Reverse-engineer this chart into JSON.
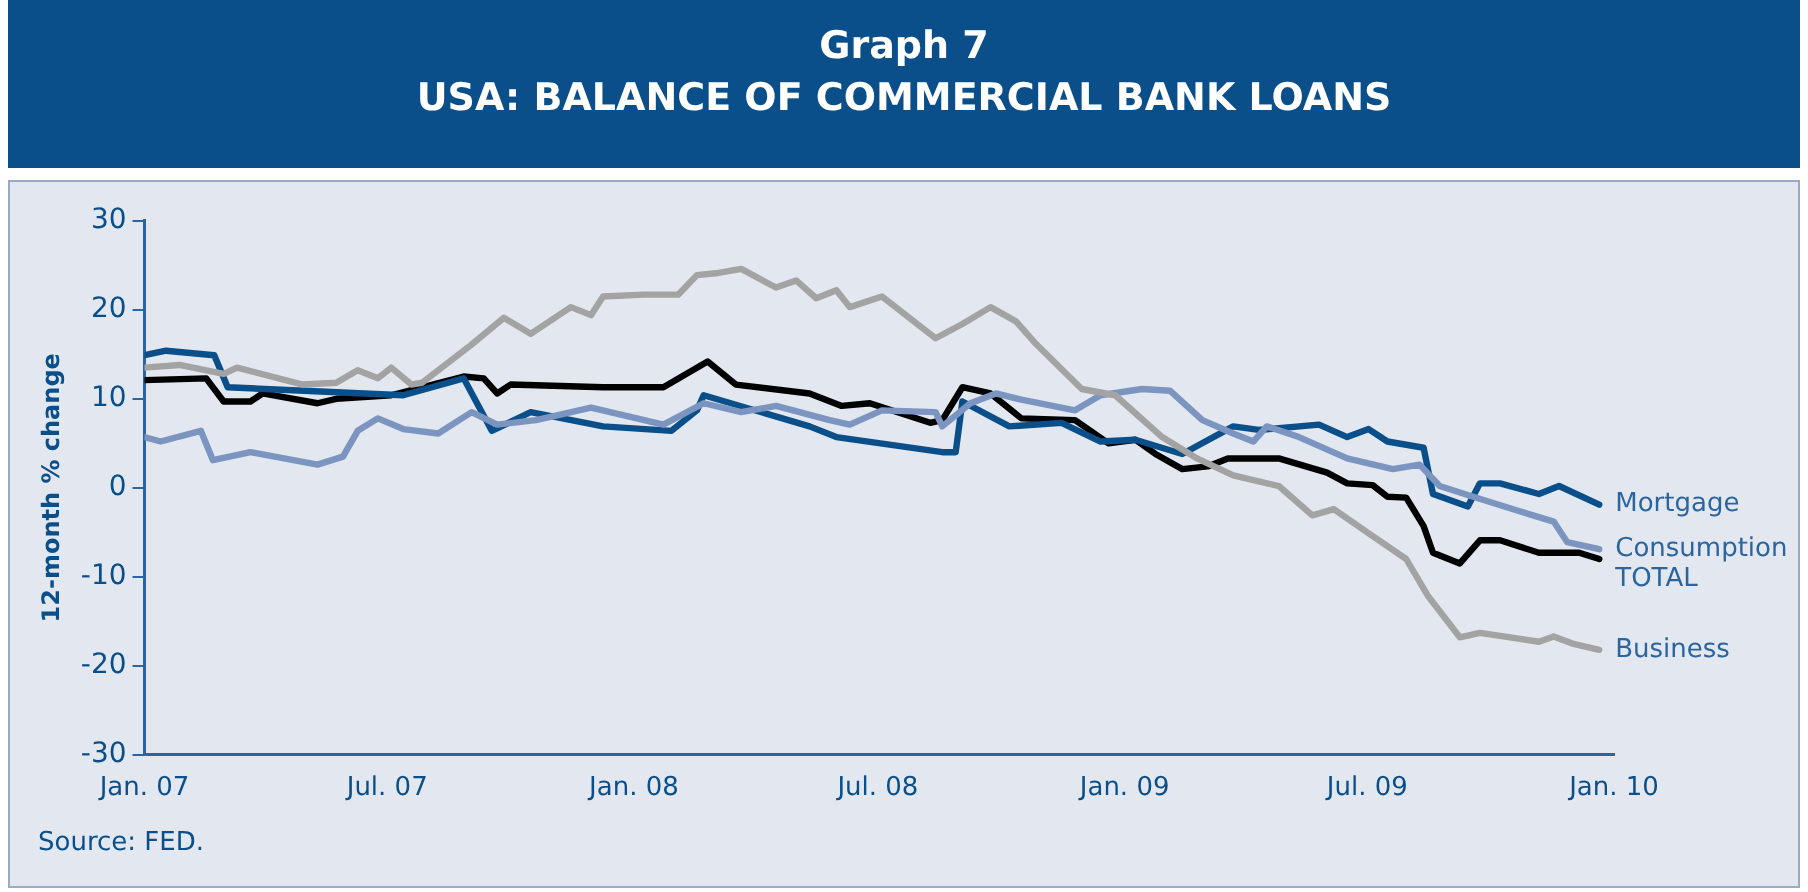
{
  "chart_data": {
    "type": "line",
    "title": "Graph 7",
    "subtitle": "USA: BALANCE OF COMMERCIAL BANK LOANS",
    "ylabel": "12-month % change",
    "annotations": [
      "Source: FED."
    ],
    "xlim": [
      "2007-01-01",
      "2010-01-01"
    ],
    "xticks": [
      {
        "value": "2007-01-01",
        "label": "Jan. 07"
      },
      {
        "value": "2007-07-01",
        "label": "Jul. 07"
      },
      {
        "value": "2008-01-01",
        "label": "Jan. 08"
      },
      {
        "value": "2008-07-01",
        "label": "Jul. 08"
      },
      {
        "value": "2009-01-01",
        "label": "Jan. 09"
      },
      {
        "value": "2009-07-01",
        "label": "Jul. 09"
      },
      {
        "value": "2010-01-01",
        "label": "Jan. 10"
      }
    ],
    "ylim": [
      -30,
      30
    ],
    "yticks": [
      -30,
      -20,
      -10,
      0,
      10,
      20,
      30
    ],
    "grid": false,
    "legend": false,
    "marker": "none",
    "line_style": "solid",
    "series": [
      {
        "name": "Business",
        "color": "#a3a3a3",
        "x": [
          "2007-01-01",
          "2007-01-27",
          "2007-03-01",
          "2007-03-11",
          "2007-04-29",
          "2007-05-24",
          "2007-06-09",
          "2007-06-24",
          "2007-07-04",
          "2007-07-19",
          "2007-07-27",
          "2007-09-02",
          "2007-09-26",
          "2007-10-16",
          "2007-11-15",
          "2007-11-30",
          "2007-12-09",
          "2008-01-08",
          "2008-02-03",
          "2008-02-17",
          "2008-03-02",
          "2008-03-21",
          "2008-04-16",
          "2008-05-01",
          "2008-05-16",
          "2008-05-31",
          "2008-06-10",
          "2008-07-04",
          "2008-08-13",
          "2008-09-02",
          "2008-09-23",
          "2008-10-12",
          "2008-10-26",
          "2008-11-30",
          "2008-12-25",
          "2009-01-29",
          "2009-02-24",
          "2009-03-23",
          "2009-04-26",
          "2009-05-21",
          "2009-06-06",
          "2009-07-01",
          "2009-07-30",
          "2009-08-15",
          "2009-09-08",
          "2009-09-23",
          "2009-11-06",
          "2009-11-17",
          "2009-12-01",
          "2009-12-21"
        ],
        "values": [
          13.5,
          13.8,
          12.8,
          13.5,
          11.6,
          11.8,
          13.2,
          12.3,
          13.5,
          11.6,
          11.8,
          16.1,
          19.1,
          17.3,
          20.3,
          19.4,
          21.5,
          21.7,
          21.7,
          23.9,
          24.1,
          24.6,
          22.5,
          23.3,
          21.3,
          22.2,
          20.3,
          21.5,
          16.8,
          18.4,
          20.3,
          18.7,
          16.3,
          11.1,
          10.4,
          5.7,
          3.3,
          1.4,
          0.2,
          -3.1,
          -2.4,
          -5.0,
          -8.0,
          -12.1,
          -16.8,
          -16.3,
          -17.3,
          -16.7,
          -17.5,
          -18.2
        ]
      },
      {
        "name": "Consumption",
        "color": "#7b95c0",
        "x": [
          "2007-01-01",
          "2007-01-13",
          "2007-02-12",
          "2007-02-21",
          "2007-03-21",
          "2007-05-10",
          "2007-05-29",
          "2007-06-09",
          "2007-06-24",
          "2007-07-13",
          "2007-08-08",
          "2007-09-02",
          "2007-09-21",
          "2007-10-20",
          "2007-11-30",
          "2008-01-23",
          "2008-02-22",
          "2008-03-21",
          "2008-04-16",
          "2008-05-26",
          "2008-06-10",
          "2008-07-04",
          "2008-08-13",
          "2008-08-18",
          "2008-09-08",
          "2008-09-27",
          "2008-10-16",
          "2008-11-25",
          "2008-12-14",
          "2009-01-14",
          "2009-02-04",
          "2009-02-28",
          "2009-03-23",
          "2009-04-07",
          "2009-04-17",
          "2009-05-11",
          "2009-06-16",
          "2009-07-20",
          "2009-08-09",
          "2009-08-24",
          "2009-09-18",
          "2009-10-22",
          "2009-11-17",
          "2009-11-27",
          "2009-12-21"
        ],
        "values": [
          5.7,
          5.2,
          6.4,
          3.1,
          4.0,
          2.6,
          3.5,
          6.4,
          7.8,
          6.6,
          6.1,
          8.5,
          7.1,
          7.6,
          9.0,
          7.1,
          9.5,
          8.5,
          9.2,
          7.6,
          7.1,
          8.7,
          8.5,
          6.9,
          9.5,
          10.6,
          9.9,
          8.7,
          10.4,
          11.1,
          10.9,
          7.6,
          6.1,
          5.2,
          6.9,
          5.7,
          3.3,
          2.1,
          2.6,
          0.2,
          -1.0,
          -2.6,
          -3.8,
          -6.1,
          -6.9
        ]
      },
      {
        "name": "Mortgage",
        "color": "#0b4f8a",
        "x": [
          "2007-01-01",
          "2007-01-17",
          "2007-02-22",
          "2007-03-04",
          "2007-07-13",
          "2007-08-27",
          "2007-09-17",
          "2007-10-16",
          "2007-12-09",
          "2008-01-29",
          "2008-02-17",
          "2008-02-22",
          "2008-05-11",
          "2008-05-31",
          "2008-08-18",
          "2008-08-28",
          "2008-09-02",
          "2008-10-07",
          "2008-11-15",
          "2008-12-14",
          "2009-01-09",
          "2009-02-13",
          "2009-03-23",
          "2009-04-11",
          "2009-05-26",
          "2009-06-16",
          "2009-07-02",
          "2009-07-16",
          "2009-08-12",
          "2009-08-19",
          "2009-09-14",
          "2009-09-23",
          "2009-10-08",
          "2009-11-06",
          "2009-11-21",
          "2009-12-21"
        ],
        "values": [
          14.9,
          15.4,
          14.9,
          11.3,
          10.4,
          12.3,
          6.4,
          8.5,
          6.9,
          6.4,
          8.7,
          10.4,
          6.9,
          5.7,
          4.0,
          4.0,
          9.7,
          6.9,
          7.3,
          5.2,
          5.4,
          3.8,
          6.9,
          6.5,
          7.1,
          5.7,
          6.6,
          5.2,
          4.5,
          -0.7,
          -2.1,
          0.5,
          0.5,
          -0.7,
          0.2,
          -1.9
        ]
      },
      {
        "name": "TOTAL",
        "color": "#000000",
        "x": [
          "2007-01-01",
          "2007-02-16",
          "2007-03-01",
          "2007-03-21",
          "2007-03-30",
          "2007-05-10",
          "2007-05-24",
          "2007-07-04",
          "2007-08-27",
          "2007-09-11",
          "2007-09-21",
          "2007-10-01",
          "2007-12-09",
          "2008-01-23",
          "2008-02-17",
          "2008-02-25",
          "2008-03-17",
          "2008-05-11",
          "2008-06-04",
          "2008-06-25",
          "2008-08-09",
          "2008-08-18",
          "2008-09-02",
          "2008-09-23",
          "2008-10-16",
          "2008-11-25",
          "2008-12-20",
          "2009-01-09",
          "2009-01-24",
          "2009-02-13",
          "2009-03-04",
          "2009-03-19",
          "2009-04-26",
          "2009-06-01",
          "2009-06-16",
          "2009-07-05",
          "2009-07-16",
          "2009-07-30",
          "2009-08-12",
          "2009-08-19",
          "2009-09-08",
          "2009-09-23",
          "2009-10-08",
          "2009-11-06",
          "2009-12-06",
          "2009-12-21"
        ],
        "values": [
          12.1,
          12.3,
          9.7,
          9.7,
          10.6,
          9.5,
          10.0,
          10.4,
          12.5,
          12.3,
          10.6,
          11.6,
          11.3,
          11.3,
          13.5,
          14.2,
          11.6,
          10.6,
          9.2,
          9.5,
          7.3,
          7.6,
          11.3,
          10.6,
          7.8,
          7.6,
          5.0,
          5.4,
          3.8,
          2.1,
          2.4,
          3.3,
          3.3,
          1.7,
          0.5,
          0.3,
          -1.0,
          -1.1,
          -4.3,
          -7.3,
          -8.5,
          -5.9,
          -5.9,
          -7.3,
          -7.3,
          -8.0
        ]
      }
    ]
  }
}
